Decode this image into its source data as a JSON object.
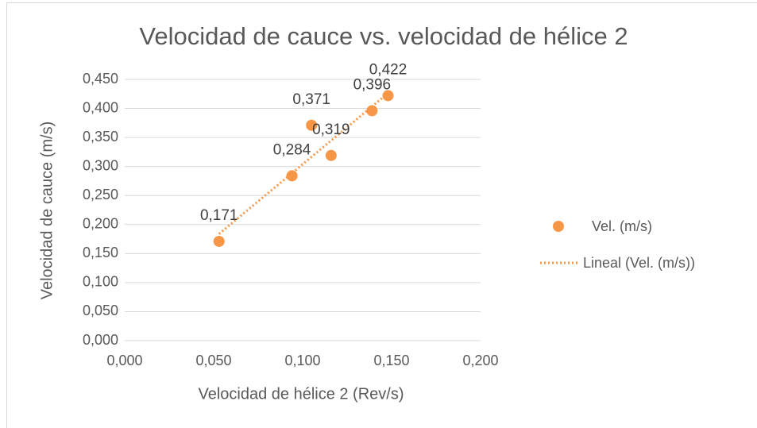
{
  "chart_data": {
    "type": "scatter",
    "title": "Velocidad de cauce vs. velocidad de hélice 2",
    "x_label": "Velocidad de hélice 2 (Rev/s)",
    "y_label": "Velocidad de cauce (m/s)",
    "series": [
      {
        "name": "Vel. (m/s)",
        "color": "#f79646",
        "x": [
          0.053,
          0.094,
          0.105,
          0.116,
          0.139,
          0.148
        ],
        "values": [
          0.171,
          0.284,
          0.371,
          0.319,
          0.396,
          0.422
        ],
        "value_labels": [
          "0,171",
          "0,284",
          "0,371",
          "0,319",
          "0,396",
          "0,422"
        ]
      }
    ],
    "trendline": {
      "name": "Lineal (Vel. (m/s))",
      "type": "linear",
      "color": "#f79646"
    },
    "xlim": [
      0,
      0.2
    ],
    "xticks": [
      {
        "value": 0,
        "label": "0,000"
      },
      {
        "value": 0.05,
        "label": "0,050"
      },
      {
        "value": 0.1,
        "label": "0,100"
      },
      {
        "value": 0.15,
        "label": "0,150"
      },
      {
        "value": 0.2,
        "label": "0,200"
      }
    ],
    "ylim": [
      0,
      0.45
    ],
    "yticks": [
      {
        "value": 0,
        "label": "0,000"
      },
      {
        "value": 0.05,
        "label": "0,050"
      },
      {
        "value": 0.1,
        "label": "0,100"
      },
      {
        "value": 0.15,
        "label": "0,150"
      },
      {
        "value": 0.2,
        "label": "0,200"
      },
      {
        "value": 0.25,
        "label": "0,250"
      },
      {
        "value": 0.3,
        "label": "0,300"
      },
      {
        "value": 0.35,
        "label": "0,350"
      },
      {
        "value": 0.4,
        "label": "0,400"
      },
      {
        "value": 0.45,
        "label": "0,450"
      }
    ],
    "grid": true,
    "legend": "right"
  }
}
